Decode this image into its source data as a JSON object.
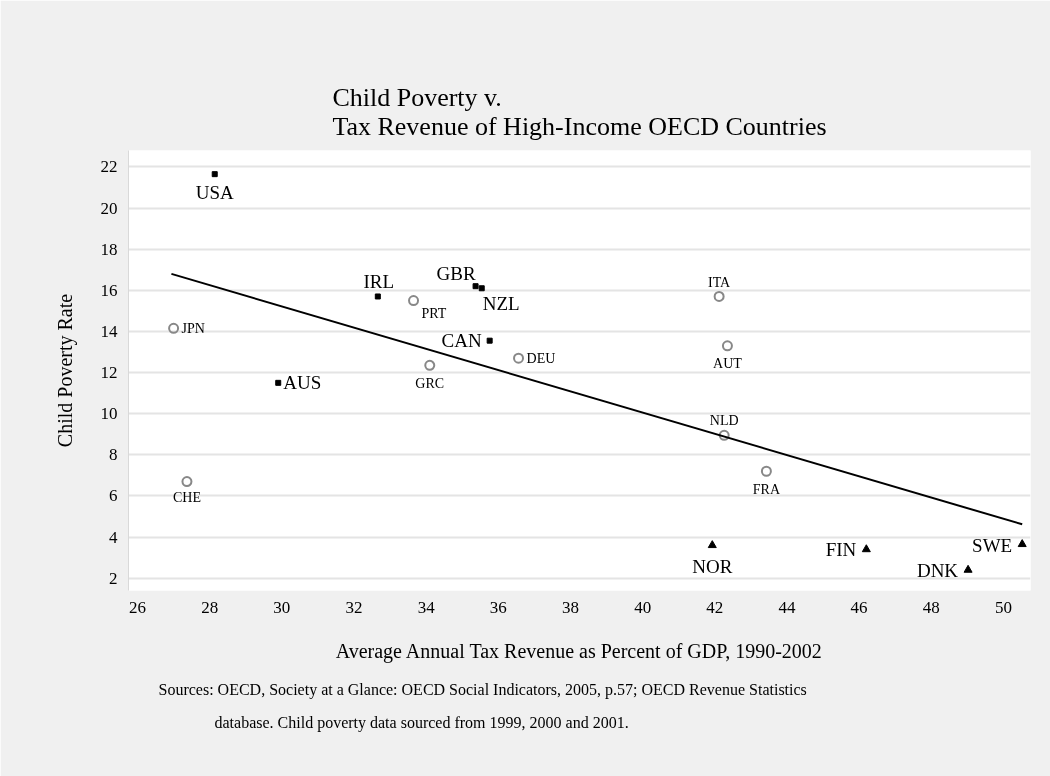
{
  "chart_data": {
    "type": "scatter",
    "title": "Child Poverty v.\nTax Revenue of High-Income OECD Countries",
    "xlabel": "Average Annual Tax Revenue as Percent of GDP, 1990-2002",
    "ylabel": "Child Poverty Rate",
    "xlim": [
      25.75,
      50.75
    ],
    "ylim": [
      1.4,
      22.8
    ],
    "xticks": [
      26,
      28,
      30,
      32,
      34,
      36,
      38,
      40,
      42,
      44,
      46,
      48,
      50
    ],
    "yticks": [
      2,
      4,
      6,
      8,
      10,
      12,
      14,
      16,
      18,
      20,
      22
    ],
    "grid": "y",
    "series": [
      {
        "color": "#888888",
        "marker": "circle",
        "x": [
          27.0,
          33.65,
          27.37,
          34.1,
          36.56,
          42.12,
          42.35,
          42.26,
          43.43
        ],
        "values": [
          14.15,
          15.5,
          6.7,
          12.35,
          12.7,
          15.7,
          13.3,
          8.95,
          7.2
        ]
      },
      {
        "color": "#000000",
        "marker": "square",
        "x": [
          28.14,
          29.9,
          32.66,
          35.37,
          35.54,
          35.76
        ],
        "values": [
          21.65,
          11.5,
          15.7,
          16.2,
          16.1,
          13.55
        ]
      },
      {
        "color": "#000000",
        "marker": "triangle",
        "x": [
          41.93,
          46.2,
          49.02,
          50.52
        ],
        "values": [
          3.6,
          3.4,
          2.4,
          3.65
        ]
      },
      {
        "type": "line",
        "color": "#000000",
        "marker": "none",
        "x": [
          26.94,
          50.52
        ],
        "values": [
          16.8,
          4.62
        ]
      }
    ],
    "annotations": [
      {
        "text": "USA",
        "x": 28.14,
        "y": 21.65
      },
      {
        "text": "JPN",
        "x": 27.0,
        "y": 14.15
      },
      {
        "text": "AUS",
        "x": 29.9,
        "y": 11.5
      },
      {
        "text": "IRL",
        "x": 32.66,
        "y": 15.7
      },
      {
        "text": "PRT",
        "x": 33.65,
        "y": 15.5
      },
      {
        "text": "GBR",
        "x": 35.37,
        "y": 16.2
      },
      {
        "text": "NZL",
        "x": 35.54,
        "y": 16.1
      },
      {
        "text": "CHE",
        "x": 27.37,
        "y": 6.7
      },
      {
        "text": "GRC",
        "x": 34.1,
        "y": 12.35
      },
      {
        "text": "CAN",
        "x": 35.76,
        "y": 13.55
      },
      {
        "text": "DEU",
        "x": 36.56,
        "y": 12.7
      },
      {
        "text": "ITA",
        "x": 42.12,
        "y": 15.7
      },
      {
        "text": "AUT",
        "x": 42.35,
        "y": 13.3
      },
      {
        "text": "NLD",
        "x": 42.26,
        "y": 8.95
      },
      {
        "text": "FRA",
        "x": 43.43,
        "y": 7.2
      },
      {
        "text": "NOR",
        "x": 41.93,
        "y": 3.6
      },
      {
        "text": "FIN",
        "x": 46.2,
        "y": 3.4
      },
      {
        "text": "DNK",
        "x": 49.02,
        "y": 2.4
      },
      {
        "text": "SWE",
        "x": 50.52,
        "y": 3.65
      },
      "Sources: OECD, Society at a Glance: OECD Social Indicators, 2005, p.57; OECD Revenue Statistics database. Child poverty data sourced from 1999, 2000 and 2001."
    ]
  }
}
